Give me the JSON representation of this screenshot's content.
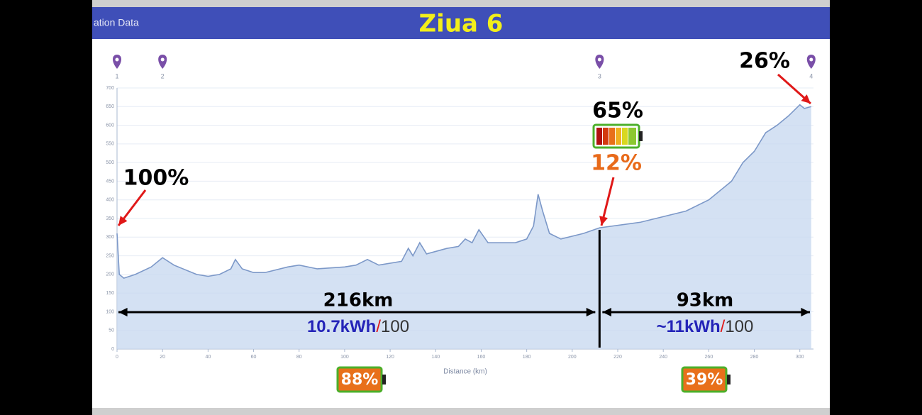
{
  "header_text": "ation Data",
  "chart_data": {
    "type": "area",
    "title": "Ziua 6",
    "x_label": "Distance (km)",
    "x": [
      0,
      1,
      3,
      8,
      15,
      20,
      25,
      35,
      40,
      45,
      50,
      52,
      55,
      60,
      65,
      75,
      80,
      88,
      100,
      105,
      110,
      115,
      125,
      128,
      130,
      133,
      136,
      145,
      150,
      153,
      156,
      159,
      163,
      175,
      180,
      183,
      185,
      187,
      190,
      195,
      205,
      212,
      230,
      250,
      260,
      270,
      275,
      280,
      285,
      290,
      295,
      300,
      302,
      305
    ],
    "values": [
      310,
      200,
      190,
      200,
      220,
      245,
      225,
      200,
      195,
      200,
      215,
      240,
      215,
      205,
      205,
      220,
      225,
      215,
      220,
      225,
      240,
      225,
      235,
      270,
      250,
      285,
      255,
      270,
      275,
      295,
      285,
      320,
      285,
      285,
      295,
      330,
      415,
      370,
      310,
      295,
      310,
      325,
      340,
      370,
      400,
      450,
      500,
      530,
      580,
      600,
      625,
      655,
      645,
      650
    ],
    "color": "#c9d9f0",
    "line_color": "#7c98c8",
    "xlim": [
      0,
      306
    ],
    "ylim": [
      0,
      700
    ],
    "xticks": [
      0,
      20,
      40,
      60,
      80,
      100,
      120,
      140,
      160,
      180,
      200,
      220,
      240,
      260,
      280,
      300
    ],
    "yticks": [
      0,
      50,
      100,
      150,
      200,
      250,
      300,
      350,
      400,
      450,
      500,
      550,
      600,
      650,
      700
    ],
    "grid": true,
    "waypoints": {
      "x": [
        0,
        20,
        212,
        305
      ],
      "labels": [
        "1",
        "2",
        "3",
        "4"
      ]
    },
    "split_x": 212,
    "charge_labels": [
      "100%",
      "65%",
      "12%",
      "26%"
    ],
    "segments": [
      {
        "distance": "216km",
        "consumption": "10.7kWh",
        "per": "100",
        "battery_used": "88%"
      },
      {
        "distance": "93km",
        "consumption": "~11kWh",
        "per": "100",
        "battery_used": "39%"
      }
    ],
    "separator": "/"
  }
}
